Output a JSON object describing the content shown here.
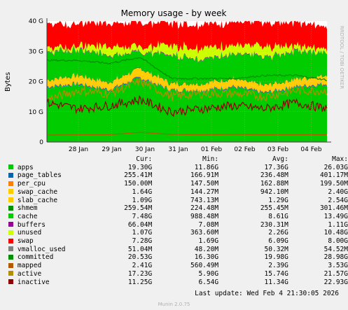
{
  "chart_data": {
    "type": "area",
    "title": "Memory usage - by week",
    "ylabel": "Bytes",
    "side_label": "RRDTOOL / TOBI OETIKER",
    "ylim": [
      0,
      40
    ],
    "y_unit": "G",
    "y_ticks": [
      {
        "value": 0,
        "label": "0"
      },
      {
        "value": 10,
        "label": "10 G"
      },
      {
        "value": 20,
        "label": "20 G"
      },
      {
        "value": 30,
        "label": "30 G"
      },
      {
        "value": 40,
        "label": "40 G"
      }
    ],
    "x_ticks": [
      "28 Jan",
      "29 Jan",
      "30 Jan",
      "31 Jan",
      "01 Feb",
      "02 Feb",
      "03 Feb",
      "04 Feb"
    ],
    "grid": true,
    "legend_position": "bottom",
    "stack_order": [
      "apps",
      "page_tables",
      "per_cpu",
      "swap_cache",
      "slab_cache",
      "shmem",
      "cache",
      "buffers",
      "unused",
      "swap"
    ],
    "line_series": [
      "vmalloc_used",
      "committed",
      "mapped",
      "active",
      "inactive"
    ],
    "approx_stacked_values_G": {
      "apps": [
        18,
        19,
        17,
        21,
        17,
        17,
        18,
        16,
        18,
        19
      ],
      "page_tables": [
        0.3,
        0.3,
        0.3,
        0.3,
        0.2,
        0.2,
        0.3,
        0.3,
        0.3,
        0.3
      ],
      "per_cpu": [
        0.2,
        0.2,
        0.2,
        0.2,
        0.2,
        0.2,
        0.2,
        0.2,
        0.2,
        0.2
      ],
      "swap_cache": [
        0.8,
        1.2,
        0.9,
        1.5,
        0.7,
        0.8,
        1.1,
        0.9,
        1.0,
        1.6
      ],
      "slab_cache": [
        1.2,
        1.3,
        1.2,
        1.4,
        1.2,
        1.2,
        1.3,
        1.2,
        1.3,
        1.1
      ],
      "shmem": [
        0.26,
        0.26,
        0.26,
        0.26,
        0.26,
        0.26,
        0.26,
        0.26,
        0.26,
        0.26
      ],
      "cache": [
        9,
        8,
        9,
        5,
        9,
        8,
        8,
        9,
        9,
        7.5
      ],
      "buffers": [
        0.2,
        0.2,
        0.2,
        0.2,
        0.2,
        0.2,
        0.2,
        0.2,
        0.2,
        0.07
      ],
      "unused": [
        1.5,
        1,
        3,
        1.5,
        3,
        3.5,
        2.5,
        3.5,
        1.5,
        1.1
      ],
      "swap": [
        8,
        7.5,
        7.8,
        8,
        7.5,
        7.8,
        7.8,
        8,
        8,
        7.3
      ]
    },
    "approx_line_values_G": {
      "inactive": [
        13,
        11,
        12,
        14,
        10,
        11,
        12,
        11,
        13,
        11
      ],
      "active": [
        14,
        17,
        16,
        20,
        15,
        16,
        16,
        15,
        17,
        17
      ],
      "mapped": [
        2.3,
        2.4,
        2.4,
        3.2,
        2.5,
        2.4,
        2.5,
        2.4,
        2.4,
        2.4
      ],
      "committed": [
        27,
        27,
        26,
        28,
        21,
        21,
        21,
        22,
        22,
        20.5
      ],
      "vmalloc_used": [
        0.05,
        0.05,
        0.05,
        0.05,
        0.05,
        0.05,
        0.05,
        0.05,
        0.05,
        0.05
      ]
    }
  },
  "legend": {
    "headers": {
      "cur": "Cur:",
      "min": "Min:",
      "avg": "Avg:",
      "max": "Max:"
    },
    "rows": [
      {
        "name": "apps",
        "color": "#00cc00",
        "cur": "19.30G",
        "min": "11.86G",
        "avg": "17.36G",
        "max": "26.03G"
      },
      {
        "name": "page_tables",
        "color": "#0066b3",
        "cur": "255.41M",
        "min": "166.91M",
        "avg": "236.48M",
        "max": "401.17M"
      },
      {
        "name": "per_cpu",
        "color": "#ff8000",
        "cur": "150.00M",
        "min": "147.50M",
        "avg": "162.88M",
        "max": "199.50M"
      },
      {
        "name": "swap_cache",
        "color": "#ffcc00",
        "cur": "1.64G",
        "min": "144.27M",
        "avg": "942.10M",
        "max": "2.40G"
      },
      {
        "name": "slab_cache",
        "color": "#ffcc00",
        "cur": "1.09G",
        "min": "743.13M",
        "avg": "1.29G",
        "max": "2.54G"
      },
      {
        "name": "shmem",
        "color": "#008f00",
        "cur": "259.54M",
        "min": "224.48M",
        "avg": "255.45M",
        "max": "301.46M"
      },
      {
        "name": "cache",
        "color": "#00cc00",
        "cur": "7.48G",
        "min": "988.48M",
        "avg": "8.61G",
        "max": "13.49G"
      },
      {
        "name": "buffers",
        "color": "#990099",
        "cur": "66.04M",
        "min": "7.08M",
        "avg": "230.31M",
        "max": "1.11G"
      },
      {
        "name": "unused",
        "color": "#ccff00",
        "cur": "1.07G",
        "min": "363.60M",
        "avg": "2.26G",
        "max": "10.48G"
      },
      {
        "name": "swap",
        "color": "#ff0000",
        "cur": "7.28G",
        "min": "1.69G",
        "avg": "6.09G",
        "max": "8.00G"
      },
      {
        "name": "vmalloc_used",
        "color": "#808080",
        "cur": "51.04M",
        "min": "48.20M",
        "avg": "50.32M",
        "max": "54.52M"
      },
      {
        "name": "committed",
        "color": "#008f00",
        "cur": "20.53G",
        "min": "16.30G",
        "avg": "19.98G",
        "max": "28.98G"
      },
      {
        "name": "mapped",
        "color": "#b35a00",
        "cur": "2.41G",
        "min": "560.49M",
        "avg": "2.39G",
        "max": "3.53G"
      },
      {
        "name": "active",
        "color": "#b38f00",
        "cur": "17.23G",
        "min": "5.90G",
        "avg": "15.74G",
        "max": "21.57G"
      },
      {
        "name": "inactive",
        "color": "#8f0000",
        "cur": "11.25G",
        "min": "6.54G",
        "avg": "11.34G",
        "max": "22.93G"
      }
    ]
  },
  "footer": {
    "last_update": "Last update:  Wed Feb  4 21:30:05 2026",
    "generator": "Munin 2.0.75"
  },
  "colors": {
    "background": "#f0f0f0",
    "plot_bg": "#ffffff",
    "grid": "#c0c0c0",
    "axis": "#404040"
  }
}
